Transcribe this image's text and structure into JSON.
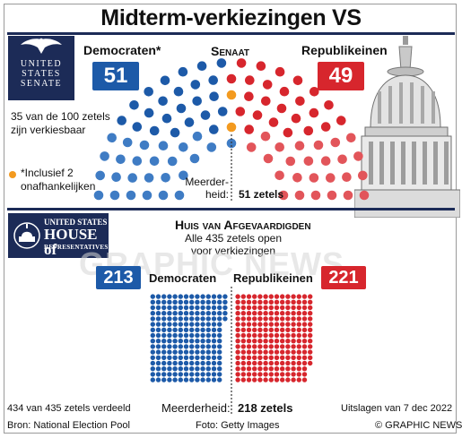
{
  "title": "Midterm-verkiezingen VS",
  "senate": {
    "logo_text": [
      "UNITED",
      "STATES",
      "SENATE"
    ],
    "heading": "Senaat",
    "dem_label": "Democraten*",
    "rep_label": "Republikeinen",
    "dem_seats": "51",
    "rep_seats": "49",
    "note": [
      "35 van de 100 zetels",
      "zijn verkiesbaar"
    ],
    "footnote": [
      "*Inclusief 2",
      "onafhankelijken"
    ],
    "majority_label": [
      "Meerder-",
      "heid:"
    ],
    "majority_value": "51 zetels"
  },
  "house": {
    "logo_text": [
      "UNITED STATES",
      "HOUSE of",
      "REPRESENTATIVES"
    ],
    "heading": "Huis van Afgevaardigden",
    "subtitle": [
      "Alle 435 zetels open",
      "voor verkiezingen"
    ],
    "dem_label": "Democraten",
    "rep_label": "Republikeinen",
    "dem_seats": "213",
    "rep_seats": "221",
    "distributed": "434 van 435 zetels verdeeld",
    "majority_label": "Meerderheid:",
    "majority_value": "218 zetels",
    "results_date": "Uitslagen van 7 dec 2022"
  },
  "footer": {
    "source": "Bron: National Election Pool",
    "photo": "Foto: Getty Images",
    "credit": "© GRAPHIC NEWS"
  },
  "watermark": "GRAPHIC NEWS",
  "colors": {
    "dem": "#1d5aa8",
    "rep": "#d7262d",
    "ind": "#f39a1f",
    "dem_light": "#3f7cc4",
    "rep_light": "#e2555a"
  },
  "chart_data": [
    {
      "type": "parliament",
      "title": "Senaat",
      "series": [
        {
          "name": "Democraten*",
          "value": 51,
          "includes_independents": 2
        },
        {
          "name": "Republikeinen",
          "value": 49
        }
      ],
      "total": 100,
      "majority": 51
    },
    {
      "type": "waffle",
      "title": "Huis van Afgevaardigden",
      "series": [
        {
          "name": "Democraten",
          "value": 213
        },
        {
          "name": "Republikeinen",
          "value": 221
        }
      ],
      "total": 435,
      "majority": 218
    }
  ]
}
